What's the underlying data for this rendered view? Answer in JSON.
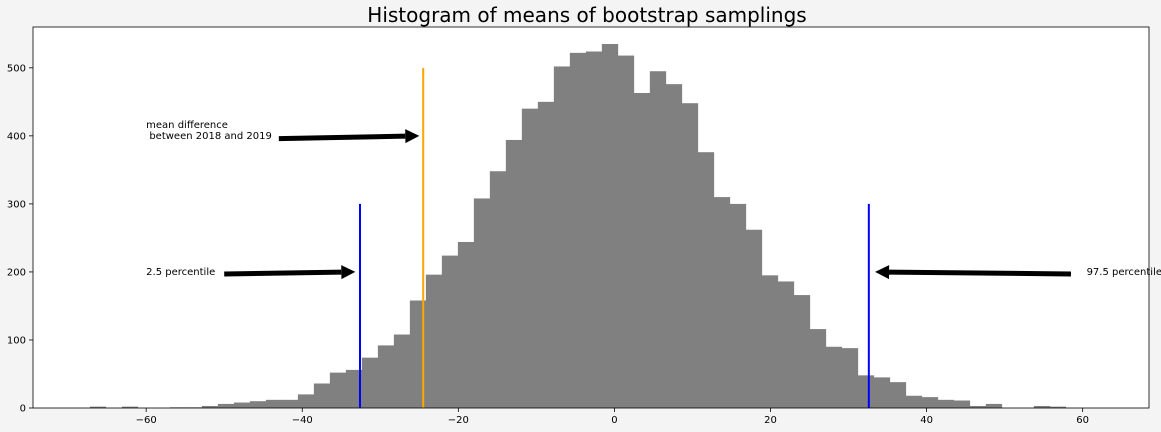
{
  "chart_data": {
    "type": "bar",
    "title": "Histogram of means of bootstrap samplings",
    "xlabel": "",
    "ylabel": "",
    "xlim": [
      -74.5,
      68.5
    ],
    "ylim": [
      0,
      560
    ],
    "bin_start": -69.26,
    "bin_width": 2.05,
    "bar_color": "#808080",
    "x_ticks": [
      -60,
      -40,
      -20,
      0,
      20,
      40,
      60
    ],
    "x_tick_labels": [
      "−60",
      "−40",
      "−20",
      "0",
      "20",
      "40",
      "60"
    ],
    "y_ticks": [
      0,
      100,
      200,
      300,
      400,
      500
    ],
    "y_tick_labels": [
      "0",
      "100",
      "200",
      "300",
      "400",
      "500"
    ],
    "values": [
      0,
      2,
      0,
      2,
      0,
      0,
      1,
      1,
      3,
      6,
      8,
      10,
      12,
      12,
      20,
      36,
      52,
      56,
      74,
      92,
      108,
      158,
      196,
      224,
      244,
      308,
      348,
      394,
      440,
      450,
      502,
      522,
      524,
      535,
      518,
      463,
      495,
      476,
      448,
      376,
      310,
      300,
      262,
      195,
      186,
      166,
      116,
      90,
      88,
      48,
      45,
      38,
      18,
      16,
      12,
      11,
      3,
      6,
      0,
      0,
      3,
      2
    ],
    "vlines": [
      {
        "x": -32.6,
        "y": [
          0,
          300
        ],
        "color": "#0000ff"
      },
      {
        "x": -24.5,
        "y": [
          0,
          500
        ],
        "color": "#ffa500"
      },
      {
        "x": 32.6,
        "y": [
          0,
          300
        ],
        "color": "#0000ff"
      }
    ],
    "annotations": [
      {
        "text": [
          "mean difference",
          " between 2018 and 2019"
        ],
        "text_x": -60,
        "text_y": 400,
        "arrow_from": [
          -43,
          396
        ],
        "arrow_to": [
          -25,
          400
        ]
      },
      {
        "text": [
          "2.5 percentile"
        ],
        "text_x": -60,
        "text_y": 200,
        "arrow_from": [
          -50,
          197
        ],
        "arrow_to": [
          -33.2,
          200
        ]
      },
      {
        "text": [
          "97.5 percentile"
        ],
        "text_x": 60.5,
        "text_y": 200,
        "arrow_from": [
          58.5,
          197
        ],
        "arrow_to": [
          33.4,
          200
        ]
      }
    ]
  }
}
